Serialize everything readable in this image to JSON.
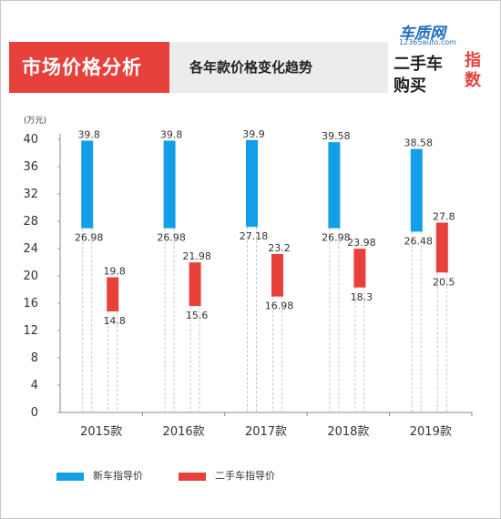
{
  "header": {
    "title": "市场价格分析",
    "subtitle": "各年款价格变化趋势"
  },
  "logo": {
    "brand": "车质网",
    "url": "12365auto.com",
    "line1": "二手车",
    "line2": "购买",
    "badge_line1": "指",
    "badge_line2": "数"
  },
  "chart_data": {
    "type": "bar",
    "y_unit": "(万元)",
    "ylim": [
      0,
      40
    ],
    "yticks": [
      0,
      4,
      8,
      12,
      16,
      20,
      24,
      28,
      32,
      36,
      40
    ],
    "categories": [
      "2015款",
      "2016款",
      "2017款",
      "2018款",
      "2019款"
    ],
    "grid": false,
    "legend_position": "bottom",
    "series": [
      {
        "name": "新车指导价",
        "color": "#139fe8",
        "low": [
          26.98,
          26.98,
          27.18,
          26.98,
          26.48
        ],
        "high": [
          39.8,
          39.8,
          39.9,
          39.58,
          38.58
        ],
        "low_labels": [
          "26.98",
          "26.98",
          "27.18",
          "26.98",
          "26.48"
        ],
        "high_labels": [
          "39.8",
          "39.8",
          "39.9",
          "39.58",
          "38.58"
        ]
      },
      {
        "name": "二手车指导价",
        "color": "#e8413c",
        "low": [
          14.8,
          15.6,
          16.98,
          18.3,
          20.5
        ],
        "high": [
          19.8,
          21.98,
          23.2,
          23.98,
          27.8
        ],
        "low_labels": [
          "14.8",
          "15.6",
          "16.98",
          "18.3",
          "20.5"
        ],
        "high_labels": [
          "19.8",
          "21.98",
          "23.2",
          "23.98",
          "27.8"
        ]
      }
    ]
  }
}
